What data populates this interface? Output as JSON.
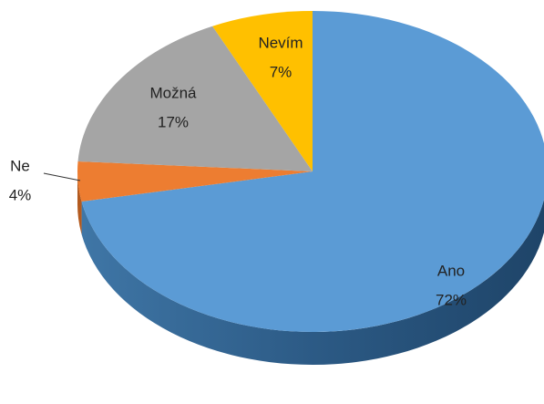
{
  "chart_data": {
    "type": "pie",
    "categories": [
      "Ano",
      "Ne",
      "Možná",
      "Nevím"
    ],
    "values": [
      72,
      4,
      17,
      7
    ],
    "value_labels": [
      "72%",
      "4%",
      "17%",
      "7%"
    ],
    "colors": [
      "#5b9bd5",
      "#ed7d31",
      "#a5a5a5",
      "#ffc000"
    ]
  }
}
